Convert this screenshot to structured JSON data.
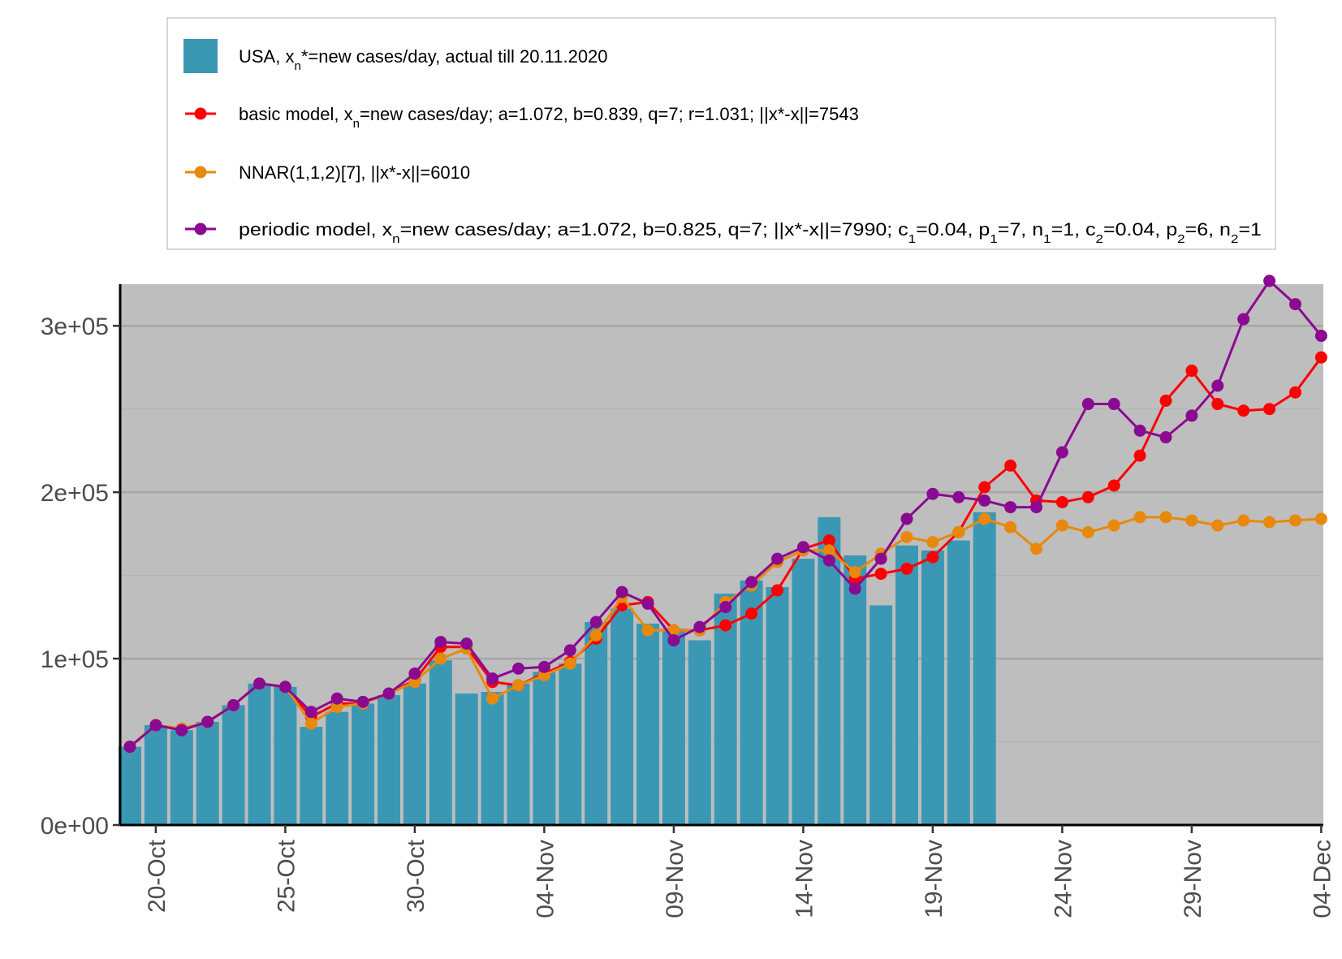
{
  "colors": {
    "bar": "#3a98b5",
    "basic": "#ff0000",
    "nnar": "#e8890c",
    "periodic": "#8b0a92",
    "panel": "#bebebe",
    "grid_major": "#a6a6a6",
    "grid_minor": "#b2b2b2"
  },
  "chart_data": {
    "type": "bar+line",
    "title": "",
    "xlabel": "",
    "ylabel": "",
    "x_start": "2020-10-19",
    "ylim": [
      0,
      325000
    ],
    "y_ticks": [
      0,
      100000,
      200000,
      300000
    ],
    "y_tick_labels": [
      "0e+00",
      "1e+05",
      "2e+05",
      "3e+05"
    ],
    "x_tick_labels": [
      "20-Oct",
      "25-Oct",
      "30-Oct",
      "04-Nov",
      "09-Nov",
      "14-Nov",
      "19-Nov",
      "24-Nov",
      "29-Nov",
      "04-Dec"
    ],
    "grid": true,
    "legend_position": "top",
    "legend": [
      {
        "key": "bars",
        "parts": [
          "USA, x",
          "n",
          "*=new cases/day, actual till 20.11.2020"
        ]
      },
      {
        "key": "basic",
        "parts": [
          "basic model,  x",
          "n",
          "=new cases/day; a=1.072, b=0.839, q=7;  r=1.031; ||x*-x||=7543"
        ]
      },
      {
        "key": "nnar",
        "parts": [
          "NNAR(1,1,2)[7], ||x*-x||=6010"
        ]
      },
      {
        "key": "periodic",
        "parts": [
          "periodic model, x",
          "n",
          "=new cases/day; a=1.072, b=0.825, q=7; ||x*-x||=7990; c",
          "1",
          "=0.04, p",
          "1",
          "=7, n",
          "1",
          "=1, c",
          "2",
          "=0.04, p",
          "2",
          "=6, n",
          "2",
          "=1"
        ]
      }
    ],
    "bars": [
      47000,
      60000,
      57000,
      62000,
      72000,
      85000,
      83000,
      59000,
      68000,
      73000,
      78000,
      85000,
      99000,
      79000,
      80000,
      85000,
      92000,
      97000,
      122000,
      130000,
      121000,
      118000,
      111000,
      139000,
      147000,
      143000,
      160000,
      185000,
      162000,
      132000,
      168000,
      165000,
      171000,
      188000
    ],
    "series": [
      {
        "key": "basic",
        "name": "basic model",
        "values": [
          47000,
          60000,
          57000,
          62000,
          72000,
          85000,
          83000,
          65000,
          73000,
          73000,
          79000,
          87000,
          107000,
          107000,
          86000,
          84000,
          91000,
          98000,
          112000,
          132000,
          134000,
          117000,
          117000,
          120000,
          127000,
          141000,
          166000,
          171000,
          148000,
          151000,
          154000,
          161000,
          176000,
          203000,
          216000,
          195000,
          194000,
          197000,
          204000,
          222000,
          255000,
          273000,
          253000,
          249000,
          250000,
          260000,
          281000
        ]
      },
      {
        "key": "nnar",
        "name": "NNAR(1,1,2)[7]",
        "values": [
          47000,
          60000,
          58000,
          62000,
          72000,
          85000,
          83000,
          61000,
          71000,
          73000,
          79000,
          86000,
          100000,
          106000,
          76000,
          84000,
          90000,
          97000,
          114000,
          137000,
          117000,
          117000,
          117000,
          134000,
          144000,
          158000,
          165000,
          165000,
          152000,
          163000,
          173000,
          170000,
          176000,
          184000,
          179000,
          166000,
          180000,
          176000,
          180000,
          185000,
          185000,
          183000,
          180000,
          183000,
          182000,
          183000,
          184000
        ]
      },
      {
        "key": "periodic",
        "name": "periodic model",
        "values": [
          47000,
          60000,
          57000,
          62000,
          72000,
          85000,
          83000,
          68000,
          76000,
          74000,
          79000,
          91000,
          110000,
          109000,
          88000,
          94000,
          95000,
          105000,
          122000,
          140000,
          133000,
          111000,
          119000,
          131000,
          146000,
          160000,
          167000,
          159000,
          142000,
          160000,
          184000,
          199000,
          197000,
          195000,
          191000,
          191000,
          224000,
          253000,
          253000,
          237000,
          233000,
          246000,
          264000,
          304000,
          327000,
          313000,
          294000
        ]
      }
    ]
  }
}
